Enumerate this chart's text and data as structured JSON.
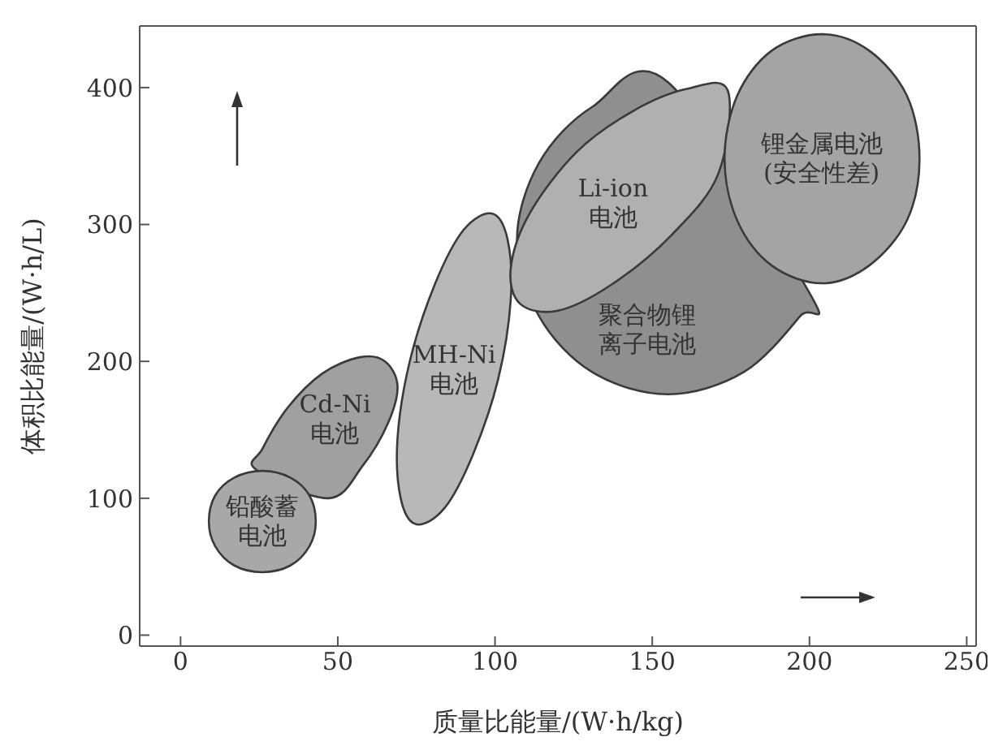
{
  "chart_data": {
    "type": "area",
    "xlabel": "质量比能量/(W·h/kg)",
    "ylabel": "体积比能量/(W·h/L)",
    "xlim": [
      -13,
      253
    ],
    "ylim": [
      -8,
      445
    ],
    "xticks": [
      0,
      50,
      100,
      150,
      200,
      250
    ],
    "yticks": [
      0,
      100,
      200,
      300,
      400
    ],
    "grid": false,
    "marker": "none",
    "line_style": "solid",
    "series": [
      {
        "name": "Cd-Ni电池",
        "color": "#a0a0a0",
        "x": [
          65,
          69,
          66,
          58,
          47,
          24,
          26,
          34,
          45,
          57
        ],
        "values": [
          200,
          182,
          155,
          124,
          100,
          121,
          136,
          166,
          191,
          203
        ]
      },
      {
        "name": "铅酸蓄电池",
        "color": "#a8a8a8",
        "x": [
          43,
          41,
          35,
          26,
          17,
          11,
          9,
          11,
          17,
          26,
          35,
          41
        ],
        "values": [
          83,
          102,
          115,
          120,
          115,
          102,
          83,
          65,
          51,
          46,
          51,
          65
        ]
      },
      {
        "name": "MH-Ni电池",
        "color": "#b8b8b8",
        "x": [
          99,
          104,
          105,
          101,
          93,
          84,
          75,
          70,
          69,
          73,
          81,
          90
        ],
        "values": [
          308,
          289,
          245,
          187,
          132,
          93,
          81,
          100,
          144,
          201,
          257,
          296
        ]
      },
      {
        "name": "聚合物锂离子电池",
        "color": "#8f8f8f",
        "x": [
          155,
          131,
          114,
          107,
          114,
          131,
          155,
          179,
          197,
          200
        ],
        "values": [
          404,
          386,
          345,
          289,
          233,
          192,
          176,
          192,
          233,
          250
        ]
      },
      {
        "name": "Li-ion电池",
        "color": "#b0b0b0",
        "x": [
          174,
          171,
          156,
          137,
          120,
          108,
          105,
          111,
          126,
          144,
          161
        ],
        "values": [
          398,
          337,
          292,
          256,
          237,
          242,
          268,
          308,
          353,
          383,
          399
        ]
      },
      {
        "name": "锂金属电池(安全性差)",
        "color": "#a4a4a4",
        "x": [
          235,
          231,
          219,
          204,
          188,
          177,
          173,
          177,
          188,
          204,
          219,
          231
        ],
        "values": [
          348,
          394,
          427,
          439,
          427,
          394,
          348,
          303,
          270,
          257,
          270,
          303
        ]
      }
    ]
  }
}
